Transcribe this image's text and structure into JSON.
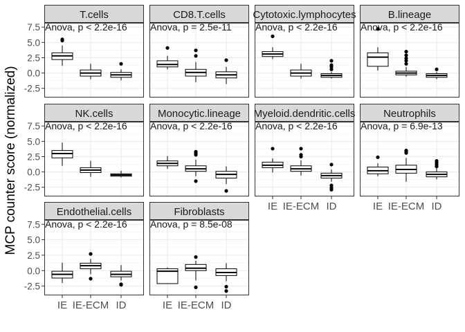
{
  "chart_data": {
    "type": "boxplot",
    "ylabel": "MCP counter score (normalized)",
    "xlabel": "",
    "categories": [
      "IE",
      "IE-ECM",
      "ID"
    ],
    "yticks": [
      -2.5,
      0.0,
      2.5,
      5.0,
      7.5
    ],
    "ytick_labels": [
      "-2.5",
      "0.0",
      "2.5",
      "5.0",
      "7.5"
    ],
    "ylim": [
      -4.0,
      8.2
    ],
    "grid": true,
    "facet_layout": {
      "ncol": 4,
      "nrow": 3
    },
    "panels": [
      {
        "name": "T.cells",
        "annotation": "Anova, p < 2.2e-16",
        "boxes": [
          {
            "category": "IE",
            "min": 1.2,
            "q1": 2.2,
            "median": 2.8,
            "q3": 3.3,
            "max": 4.5,
            "outliers": [
              5.3,
              5.5
            ]
          },
          {
            "category": "IE-ECM",
            "min": -1.0,
            "q1": -0.5,
            "median": 0.0,
            "q3": 0.5,
            "max": 1.5,
            "outliers": []
          },
          {
            "category": "ID",
            "min": -1.2,
            "q1": -0.7,
            "median": -0.3,
            "q3": 0.1,
            "max": 0.6,
            "outliers": [
              1.5
            ]
          }
        ]
      },
      {
        "name": "CD8.T.cells",
        "annotation": "Anova, p = 2.5e-11",
        "boxes": [
          {
            "category": "IE",
            "min": 0.6,
            "q1": 1.0,
            "median": 1.4,
            "q3": 2.0,
            "max": 2.8,
            "outliers": [
              4.1
            ]
          },
          {
            "category": "IE-ECM",
            "min": -1.5,
            "q1": -0.5,
            "median": 0.1,
            "q3": 0.6,
            "max": 1.8,
            "outliers": [
              2.8,
              3.7
            ]
          },
          {
            "category": "ID",
            "min": -1.8,
            "q1": -0.8,
            "median": -0.3,
            "q3": 0.2,
            "max": 1.0,
            "outliers": [
              2.1
            ]
          }
        ]
      },
      {
        "name": "Cytotoxic.lymphocytes",
        "annotation": "Anova, p < 2.2e-16",
        "boxes": [
          {
            "category": "IE",
            "min": 2.3,
            "q1": 2.7,
            "median": 3.1,
            "q3": 3.5,
            "max": 4.2,
            "outliers": [
              6.0
            ]
          },
          {
            "category": "IE-ECM",
            "min": -0.9,
            "q1": -0.5,
            "median": 0.0,
            "q3": 0.5,
            "max": 1.5,
            "outliers": []
          },
          {
            "category": "ID",
            "min": -0.9,
            "q1": -0.7,
            "median": -0.4,
            "q3": -0.1,
            "max": 0.2,
            "outliers": [
              0.6,
              1.0,
              1.3,
              2.0
            ]
          }
        ]
      },
      {
        "name": "B.lineage",
        "annotation": "Anova, p < 2.2e-16",
        "boxes": [
          {
            "category": "IE",
            "min": 0.4,
            "q1": 1.1,
            "median": 2.6,
            "q3": 3.3,
            "max": 4.2,
            "outliers": [
              7.2
            ]
          },
          {
            "category": "IE-ECM",
            "min": -0.6,
            "q1": -0.3,
            "median": 0.0,
            "q3": 0.3,
            "max": 1.0,
            "outliers": [
              1.5,
              2.0,
              2.4,
              2.9,
              3.5
            ]
          },
          {
            "category": "ID",
            "min": -1.0,
            "q1": -0.7,
            "median": -0.4,
            "q3": -0.1,
            "max": 0.2,
            "outliers": [
              0.6
            ]
          }
        ]
      },
      {
        "name": "NK.cells",
        "annotation": "Anova, p < 2.2e-16",
        "boxes": [
          {
            "category": "IE",
            "min": 1.0,
            "q1": 2.3,
            "median": 3.0,
            "q3": 3.5,
            "max": 4.8,
            "outliers": []
          },
          {
            "category": "IE-ECM",
            "min": -0.8,
            "q1": -0.1,
            "median": 0.3,
            "q3": 0.7,
            "max": 1.8,
            "outliers": []
          },
          {
            "category": "ID",
            "min": -0.9,
            "q1": -0.7,
            "median": -0.5,
            "q3": -0.3,
            "max": 0.2,
            "outliers": []
          }
        ]
      },
      {
        "name": "Monocytic.lineage",
        "annotation": "Anova, p < 2.2e-16",
        "boxes": [
          {
            "category": "IE",
            "min": 0.5,
            "q1": 1.0,
            "median": 1.4,
            "q3": 1.8,
            "max": 2.6,
            "outliers": []
          },
          {
            "category": "IE-ECM",
            "min": -0.7,
            "q1": 0.1,
            "median": 0.5,
            "q3": 1.0,
            "max": 2.0,
            "outliers": [
              -1.5,
              2.8,
              3.1,
              3.3
            ]
          },
          {
            "category": "ID",
            "min": -2.0,
            "q1": -1.0,
            "median": -0.4,
            "q3": 0.1,
            "max": 0.9,
            "outliers": [
              -3.1
            ]
          }
        ]
      },
      {
        "name": "Myeloid.dendritic.cells",
        "annotation": "Anova, p < 2.2e-16",
        "boxes": [
          {
            "category": "IE",
            "min": -0.1,
            "q1": 0.7,
            "median": 1.1,
            "q3": 1.6,
            "max": 2.2,
            "outliers": [
              3.8
            ]
          },
          {
            "category": "IE-ECM",
            "min": -0.6,
            "q1": 0.1,
            "median": 0.5,
            "q3": 1.0,
            "max": 1.9,
            "outliers": [
              2.5,
              2.8,
              3.8
            ]
          },
          {
            "category": "ID",
            "min": -1.6,
            "q1": -1.0,
            "median": -0.6,
            "q3": -0.2,
            "max": 0.4,
            "outliers": [
              1.2,
              -2.2,
              -2.6,
              -2.9
            ]
          }
        ]
      },
      {
        "name": "Neutrophils",
        "annotation": "Anova, p = 6.9e-13",
        "boxes": [
          {
            "category": "IE",
            "min": -0.7,
            "q1": -0.3,
            "median": 0.2,
            "q3": 0.8,
            "max": 1.4,
            "outliers": [
              2.4
            ]
          },
          {
            "category": "IE-ECM",
            "min": -1.6,
            "q1": -0.2,
            "median": 0.4,
            "q3": 1.1,
            "max": 2.3,
            "outliers": [
              3.1,
              3.3,
              3.5
            ]
          },
          {
            "category": "ID",
            "min": -1.2,
            "q1": -0.8,
            "median": -0.4,
            "q3": 0.0,
            "max": 0.6,
            "outliers": [
              0.9,
              1.2,
              1.5,
              1.8
            ]
          }
        ]
      },
      {
        "name": "Endothelial.cells",
        "annotation": "Anova, p < 2.2e-16",
        "boxes": [
          {
            "category": "IE",
            "min": -2.0,
            "q1": -1.2,
            "median": -0.6,
            "q3": -0.1,
            "max": 1.3,
            "outliers": []
          },
          {
            "category": "IE-ECM",
            "min": -0.6,
            "q1": 0.3,
            "median": 0.8,
            "q3": 1.2,
            "max": 1.9,
            "outliers": [
              2.7,
              -1.3
            ]
          },
          {
            "category": "ID",
            "min": -1.6,
            "q1": -1.0,
            "median": -0.6,
            "q3": -0.1,
            "max": 0.9,
            "outliers": [
              -2.2,
              -2.3
            ]
          }
        ]
      },
      {
        "name": "Fibroblasts",
        "annotation": "Anova, p = 8.5e-08",
        "boxes": [
          {
            "category": "IE",
            "min": -2.1,
            "q1": -2.1,
            "median": -0.1,
            "q3": 0.3,
            "max": 0.5,
            "outliers": []
          },
          {
            "category": "IE-ECM",
            "min": -1.6,
            "q1": 0.0,
            "median": 0.4,
            "q3": 1.0,
            "max": 1.6,
            "outliers": [
              2.2,
              -2.7
            ]
          },
          {
            "category": "ID",
            "min": -1.7,
            "q1": -0.8,
            "median": -0.3,
            "q3": 0.3,
            "max": 1.2,
            "outliers": [
              -2.6,
              -3.3
            ]
          }
        ]
      }
    ]
  }
}
